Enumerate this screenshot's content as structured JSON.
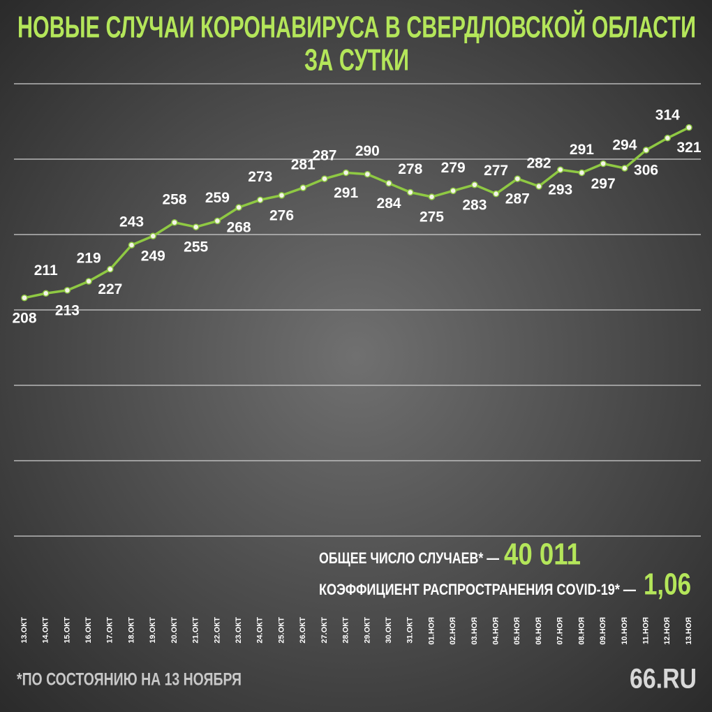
{
  "chart_data": {
    "type": "line",
    "title": [
      "НОВЫЕ СЛУЧАИ КОРОНАВИРУСА В СВЕРДЛОВСКОЙ ОБЛАСТИ",
      "ЗА СУТКИ"
    ],
    "categories": [
      "13.ОКТ",
      "14.ОКТ",
      "15.ОКТ",
      "16.ОКТ",
      "17.ОКТ",
      "18.ОКТ",
      "19.ОКТ",
      "20.ОКТ",
      "21.ОКТ",
      "22.ОКТ",
      "23.ОКТ",
      "24.ОКТ",
      "25.ОКТ",
      "26.ОКТ",
      "27.ОКТ",
      "28.ОКТ",
      "29.ОКТ",
      "30.ОКТ",
      "31.ОКТ",
      "01.НОЯ",
      "02.НОЯ",
      "03.НОЯ",
      "04.НОЯ",
      "05.НОЯ",
      "06.НОЯ",
      "07.НОЯ",
      "08.НОЯ",
      "09.НОЯ",
      "10.НОЯ",
      "11.НОЯ",
      "12.НОЯ",
      "13.НОЯ"
    ],
    "values": [
      208,
      211,
      213,
      219,
      227,
      243,
      249,
      258,
      255,
      259,
      268,
      273,
      276,
      281,
      287,
      291,
      290,
      284,
      278,
      275,
      279,
      283,
      277,
      287,
      282,
      293,
      291,
      297,
      294,
      306,
      314,
      321
    ],
    "color": "#8fc943",
    "ylim": [
      50,
      350
    ],
    "yticks": [
      50,
      100,
      150,
      200,
      250,
      300,
      350
    ],
    "grid": true,
    "annotations": [
      {
        "label": "ОБЩЕЕ ЧИСЛО СЛУЧАЕВ* —",
        "value": "40 011"
      },
      {
        "label": "КОЭФФИЦИЕНТ РАСПРОСТРАНЕНИЯ COVID-19* —",
        "value": "1,06"
      }
    ],
    "footnote": "*ПО СОСТОЯНИЮ НА 13 НОЯБРЯ",
    "logo": "66.RU"
  }
}
